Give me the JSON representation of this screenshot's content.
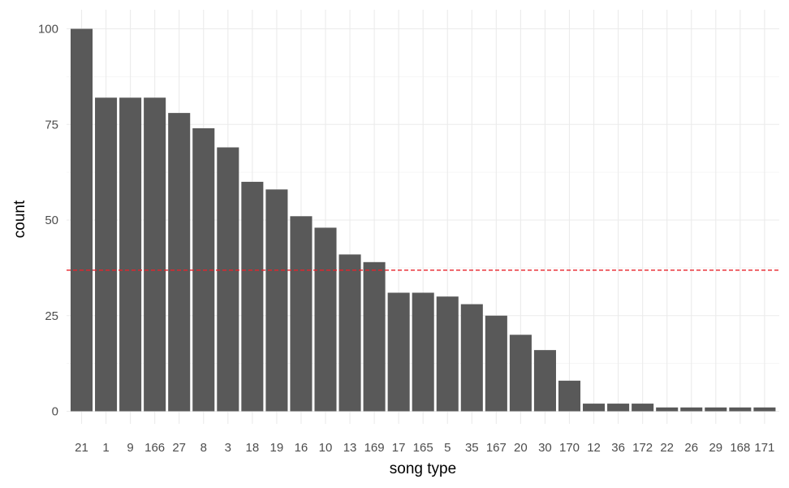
{
  "chart_data": {
    "type": "bar",
    "xlabel": "song type",
    "ylabel": "count",
    "categories": [
      "21",
      "1",
      "9",
      "166",
      "27",
      "8",
      "3",
      "18",
      "19",
      "16",
      "10",
      "13",
      "169",
      "17",
      "165",
      "5",
      "35",
      "167",
      "20",
      "30",
      "170",
      "12",
      "36",
      "172",
      "22",
      "26",
      "29",
      "168",
      "171"
    ],
    "values": [
      100,
      82,
      82,
      82,
      78,
      74,
      69,
      60,
      58,
      51,
      48,
      41,
      39,
      31,
      31,
      30,
      28,
      25,
      20,
      16,
      8,
      2,
      2,
      2,
      1,
      1,
      1,
      1,
      1
    ],
    "ylim": [
      0,
      100
    ],
    "yticks": [
      0,
      25,
      50,
      75,
      100
    ],
    "bar_color": "#595959",
    "reference_line": {
      "y": 36.9,
      "color": "#e8222a",
      "style": "dashed"
    },
    "grid": true,
    "legend": "none"
  }
}
